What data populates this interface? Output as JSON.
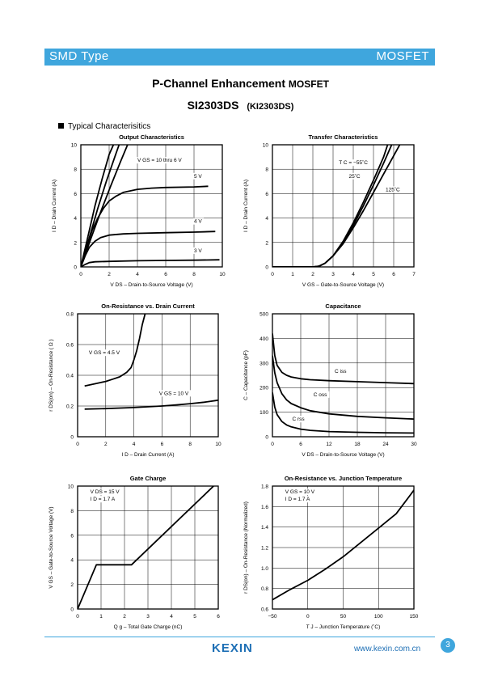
{
  "header": {
    "left": "SMD Type",
    "right": "MOSFET"
  },
  "title": {
    "main": "P-Channel Enhancement",
    "suffix": "MOSFET"
  },
  "part": {
    "number": "SI2303DS",
    "alt": "(KI2303DS)"
  },
  "section": "Typical  Characterisitics",
  "footer": {
    "logo": "KEXIN",
    "url": "www.kexin.com.cn",
    "page": "3"
  },
  "chart_data": [
    {
      "type": "line",
      "title": "Output Characteristics",
      "xlabel": "V DS  –  Drain-to-Source Voltage (V)",
      "ylabel": "I D  –  Drain Current (A)",
      "xlim": [
        0,
        10
      ],
      "ylim": [
        0,
        10
      ],
      "xticks": [
        "0",
        "2",
        "4",
        "6",
        "8",
        "10"
      ],
      "yticks": [
        "0",
        "2",
        "4",
        "6",
        "8",
        "10"
      ],
      "grid": true,
      "annotations": [
        "V GS = 10 thru 6 V",
        "5 V",
        "4 V",
        "3 V"
      ],
      "series": [
        {
          "name": "V GS = 10 thru 6 V",
          "x": [
            0,
            0.5,
            1,
            1.5,
            2,
            2.3
          ],
          "y": [
            0,
            2.5,
            5,
            7.2,
            9.2,
            10
          ]
        },
        {
          "name": "V GS = 10 thru 6 V",
          "x": [
            0,
            0.6,
            1.2,
            1.8,
            2.4,
            2.7
          ],
          "y": [
            0,
            2.4,
            4.8,
            7,
            9,
            10
          ]
        },
        {
          "name": "V GS = 10 thru 6 V",
          "x": [
            0,
            0.7,
            1.4,
            2.1,
            2.8,
            3.3
          ],
          "y": [
            0,
            2.3,
            4.5,
            6.6,
            8.6,
            10
          ]
        },
        {
          "name": "5 V",
          "x": [
            0,
            0.4,
            0.8,
            1.2,
            1.6,
            2,
            2.5,
            3,
            4,
            5,
            6,
            8,
            9
          ],
          "y": [
            0,
            1.6,
            3,
            4,
            4.8,
            5.4,
            5.8,
            6.1,
            6.35,
            6.45,
            6.5,
            6.55,
            6.6
          ]
        },
        {
          "name": "4 V",
          "x": [
            0,
            0.3,
            0.6,
            1,
            1.4,
            2,
            3,
            4,
            6,
            8,
            9.5
          ],
          "y": [
            0,
            0.9,
            1.6,
            2.1,
            2.4,
            2.6,
            2.7,
            2.75,
            2.8,
            2.85,
            2.9
          ]
        },
        {
          "name": "3 V",
          "x": [
            0,
            0.3,
            0.6,
            1,
            2,
            4,
            6,
            8,
            9.8
          ],
          "y": [
            0,
            0.2,
            0.35,
            0.42,
            0.45,
            0.5,
            0.53,
            0.55,
            0.58
          ]
        }
      ]
    },
    {
      "type": "line",
      "title": "Transfer Characteristics",
      "xlabel": "V GS  –  Gate-to-Source Voltage (V)",
      "ylabel": "I D  –  Drain Current (A)",
      "xlim": [
        0,
        7
      ],
      "ylim": [
        0,
        10
      ],
      "xticks": [
        "0",
        "1",
        "2",
        "3",
        "4",
        "5",
        "6",
        "7"
      ],
      "yticks": [
        "0",
        "2",
        "4",
        "6",
        "8",
        "10"
      ],
      "grid": true,
      "annotations": [
        "T C = −55˚C",
        "25˚C",
        "125˚C"
      ],
      "series": [
        {
          "name": "T C = −55˚C",
          "x": [
            0,
            2,
            2.3,
            2.6,
            3,
            3.5,
            4,
            4.5,
            5,
            5.5,
            5.7
          ],
          "y": [
            0,
            0,
            0.05,
            0.3,
            0.9,
            2.1,
            3.6,
            5.3,
            7.1,
            9,
            10
          ]
        },
        {
          "name": "25˚C",
          "x": [
            0,
            2,
            2.3,
            2.6,
            3,
            3.5,
            4,
            4.5,
            5,
            5.5,
            5.9
          ],
          "y": [
            0,
            0,
            0.05,
            0.3,
            0.9,
            2,
            3.4,
            5,
            6.7,
            8.5,
            10
          ]
        },
        {
          "name": "125˚C",
          "x": [
            0,
            2,
            2.3,
            2.6,
            3,
            3.5,
            4,
            4.5,
            5,
            5.5,
            6,
            6.3
          ],
          "y": [
            0,
            0,
            0.05,
            0.3,
            0.9,
            1.9,
            3.2,
            4.6,
            6.1,
            7.6,
            9.1,
            10
          ]
        }
      ]
    },
    {
      "type": "line",
      "title": "On-Resistance vs. Drain Current",
      "xlabel": "I D  –  Drain Current (A)",
      "ylabel": "r DS(on)  –  On-Resistance ( Ω )",
      "xlim": [
        0,
        10
      ],
      "ylim": [
        0,
        0.8
      ],
      "xticks": [
        "0",
        "2",
        "4",
        "6",
        "8",
        "10"
      ],
      "yticks": [
        "0",
        "0.2",
        "0.4",
        "0.6",
        "0.8"
      ],
      "grid": true,
      "annotations": [
        "V GS = 4.5 V",
        "V GS = 10 V"
      ],
      "series": [
        {
          "name": "V GS = 4.5 V",
          "x": [
            0.5,
            1,
            1.5,
            2,
            2.5,
            3,
            3.5,
            3.8,
            4,
            4.2,
            4.4,
            4.6,
            4.8
          ],
          "y": [
            0.33,
            0.34,
            0.35,
            0.36,
            0.375,
            0.39,
            0.42,
            0.45,
            0.5,
            0.56,
            0.64,
            0.73,
            0.8
          ]
        },
        {
          "name": "V GS = 10 V",
          "x": [
            0.5,
            2,
            4,
            6,
            7,
            8,
            9,
            10
          ],
          "y": [
            0.18,
            0.183,
            0.19,
            0.2,
            0.207,
            0.215,
            0.225,
            0.238
          ]
        }
      ]
    },
    {
      "type": "line",
      "title": "Capacitance",
      "xlabel": "V DS  –  Drain-to-Source Voltage (V)",
      "ylabel": "C  –  Capacitance (pF)",
      "xlim": [
        0,
        30
      ],
      "ylim": [
        0,
        500
      ],
      "xticks": [
        "0",
        "6",
        "12",
        "18",
        "24",
        "30"
      ],
      "yticks": [
        "0",
        "100",
        "200",
        "300",
        "400",
        "500"
      ],
      "grid": true,
      "annotations": [
        "C iss",
        "C oss",
        "C rss"
      ],
      "series": [
        {
          "name": "C iss",
          "x": [
            0,
            0.5,
            1,
            2,
            3,
            4,
            6,
            8,
            12,
            18,
            24,
            30
          ],
          "y": [
            420,
            330,
            290,
            262,
            250,
            243,
            236,
            232,
            228,
            224,
            220,
            216
          ]
        },
        {
          "name": "C oss",
          "x": [
            0,
            0.5,
            1,
            2,
            3,
            4,
            6,
            8,
            12,
            18,
            24,
            30
          ],
          "y": [
            330,
            260,
            220,
            175,
            150,
            135,
            118,
            106,
            93,
            83,
            77,
            72
          ]
        },
        {
          "name": "C rss",
          "x": [
            0,
            0.5,
            1,
            2,
            3,
            4,
            6,
            8,
            12,
            18,
            24,
            30
          ],
          "y": [
            180,
            120,
            90,
            62,
            48,
            40,
            31,
            26,
            21,
            18,
            16,
            15
          ]
        }
      ]
    },
    {
      "type": "line",
      "title": "Gate Charge",
      "xlabel": "Q g  –  Total Gate Charge (nC)",
      "ylabel": "V GS  –  Gate-to-Source Voltage (V)",
      "xlim": [
        0,
        6
      ],
      "ylim": [
        0,
        10
      ],
      "xticks": [
        "0",
        "1",
        "2",
        "3",
        "4",
        "5",
        "6"
      ],
      "yticks": [
        "0",
        "2",
        "4",
        "6",
        "8",
        "10"
      ],
      "grid": true,
      "annotations": [
        "V DS = 15 V",
        "I D = 1.7 A"
      ],
      "series": [
        {
          "name": "",
          "x": [
            0,
            0.8,
            2.3,
            5.8
          ],
          "y": [
            0,
            3.6,
            3.6,
            10
          ]
        }
      ]
    },
    {
      "type": "line",
      "title": "On-Resistance vs. Junction Temperature",
      "xlabel": "T J  –  Junction Temperature (˚C)",
      "ylabel": "r DS(on)  –  On-Resistance (Normalized)",
      "xlim": [
        -50,
        150
      ],
      "ylim": [
        0.6,
        1.8
      ],
      "xticks": [
        "−50",
        "0",
        "50",
        "100",
        "150"
      ],
      "yticks": [
        "0.6",
        "0.8",
        "1.0",
        "1.2",
        "1.4",
        "1.6",
        "1.8"
      ],
      "grid": true,
      "annotations": [
        "V GS = 10 V",
        "I D = 1.7 A"
      ],
      "series": [
        {
          "name": "",
          "x": [
            -50,
            -25,
            0,
            25,
            50,
            75,
            100,
            125,
            150
          ],
          "y": [
            0.69,
            0.79,
            0.88,
            0.99,
            1.11,
            1.25,
            1.39,
            1.53,
            1.76
          ]
        }
      ]
    }
  ]
}
